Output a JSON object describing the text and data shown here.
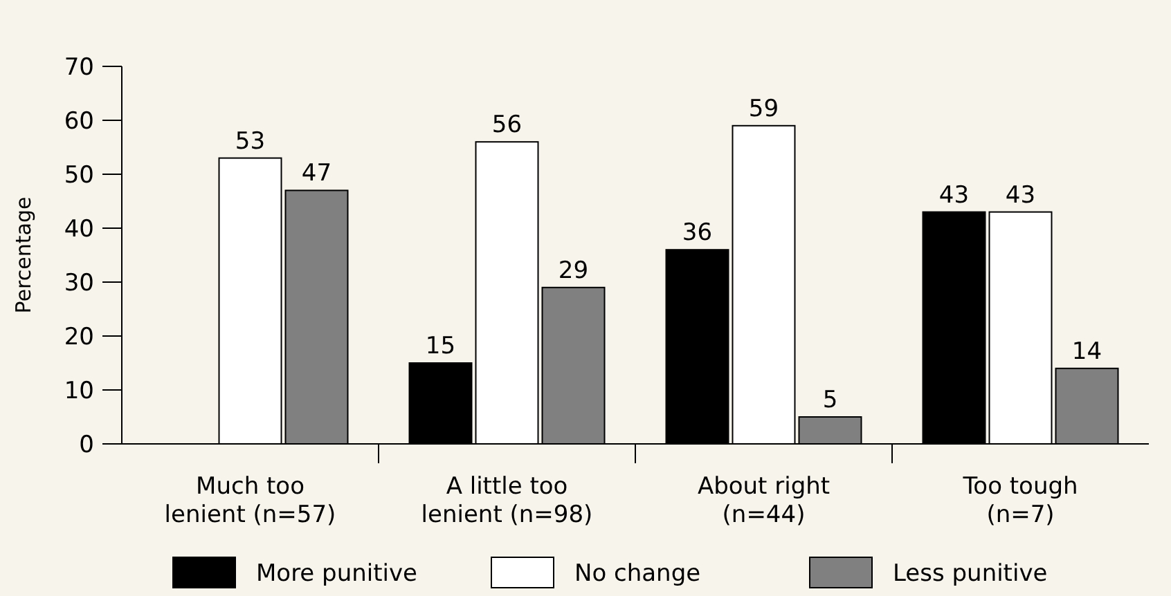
{
  "chart_data": {
    "type": "bar",
    "ylabel": "Percentage",
    "categories": [
      "Much too\nlenient (n=57)",
      "A little too\nlenient (n=98)",
      "About right\n(n=44)",
      "Too tough\n(n=7)"
    ],
    "series": [
      {
        "name": "More punitive",
        "color": "#000000",
        "values": [
          0,
          15,
          36,
          43
        ],
        "value_labels": [
          null,
          "15",
          "36",
          "43"
        ]
      },
      {
        "name": "No change",
        "color": "#ffffff",
        "values": [
          53,
          56,
          59,
          43
        ],
        "value_labels": [
          "53",
          "56",
          "59",
          "43"
        ]
      },
      {
        "name": "Less punitive",
        "color": "#808080",
        "values": [
          47,
          29,
          5,
          14
        ],
        "value_labels": [
          "47",
          "29",
          "5",
          "14"
        ]
      }
    ],
    "ylim": [
      0,
      70
    ],
    "yticks": [
      0,
      10,
      20,
      30,
      40,
      50,
      60,
      70
    ],
    "grid": false,
    "legend": "bottom"
  }
}
